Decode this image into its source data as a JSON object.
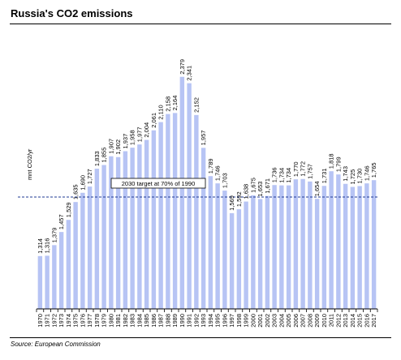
{
  "title": "Russia's CO2 emissions",
  "source": "Source: European Commission",
  "colors": {
    "bar": "#b7c4f4",
    "target_line": "#1f3a93"
  },
  "chart_data": {
    "type": "bar",
    "ylabel": "mnt CO2/yr",
    "ylim": [
      1000,
      2450
    ],
    "categories": [
      "1970",
      "1971",
      "1972",
      "1973",
      "1974",
      "1975",
      "1976",
      "1977",
      "1978",
      "1979",
      "1980",
      "1981",
      "1982",
      "1983",
      "1984",
      "1985",
      "1986",
      "1987",
      "1988",
      "1989",
      "1990",
      "1991",
      "1992",
      "1993",
      "1994",
      "1995",
      "1996",
      "1997",
      "1998",
      "1999",
      "2000",
      "2001",
      "2002",
      "2003",
      "2004",
      "2005",
      "2006",
      "2007",
      "2008",
      "2009",
      "2010",
      "2011",
      "2012",
      "2013",
      "2014",
      "2015",
      "2016",
      "2017"
    ],
    "values": [
      1314,
      1316,
      1379,
      1457,
      1529,
      1635,
      1690,
      1727,
      1833,
      1855,
      1907,
      1902,
      1937,
      1958,
      1977,
      2004,
      2061,
      2110,
      2158,
      2164,
      2379,
      2341,
      2152,
      1957,
      1789,
      1746,
      1703,
      1569,
      1592,
      1638,
      1675,
      1653,
      1671,
      1736,
      1734,
      1734,
      1770,
      1772,
      1757,
      1654,
      1731,
      1818,
      1799,
      1743,
      1725,
      1730,
      1746,
      1765
    ],
    "value_labels": [
      "1,314",
      "1,316",
      "1,379",
      "1,457",
      "1,529",
      "1,635",
      "1,690",
      "1,727",
      "1,833",
      "1,855",
      "1,907",
      "1,902",
      "1,937",
      "1,958",
      "1,977",
      "2,004",
      "2,061",
      "2,110",
      "2,158",
      "2,164",
      "2,379",
      "2,341",
      "2,152",
      "1,957",
      "1,789",
      "1,746",
      "1,703",
      "1,569",
      "1,592",
      "1,638",
      "1,675",
      "1,653",
      "1,671",
      "1,736",
      "1,734",
      "1,734",
      "1,770",
      "1,772",
      "1,757",
      "1,654",
      "1,731",
      "1,818",
      "1,799",
      "1,743",
      "1,725",
      "1,730",
      "1,746",
      "1,765"
    ],
    "target_value": 1665,
    "target_label": "2030 target at 70% of 1990"
  }
}
